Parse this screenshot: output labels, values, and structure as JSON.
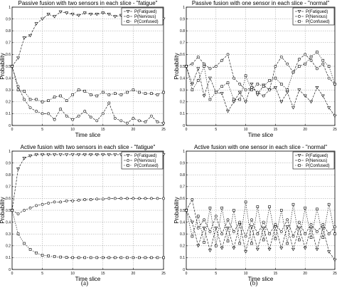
{
  "chart_data": [
    {
      "type": "line",
      "title": "Passive fusion with two sensors in each slice - \"fatigue\"",
      "xlabel": "Time slice",
      "ylabel": "Probability",
      "xlim": [
        0,
        25
      ],
      "ylim": [
        0,
        1
      ],
      "xticks": [
        0,
        5,
        10,
        15,
        20,
        25
      ],
      "yticks": [
        0,
        0.1,
        0.2,
        0.3,
        0.4,
        0.5,
        0.6,
        0.7,
        0.8,
        0.9,
        1
      ],
      "grid": true,
      "legend": "top-right",
      "x": [
        0,
        1,
        2,
        3,
        4,
        5,
        6,
        7,
        8,
        9,
        10,
        11,
        12,
        13,
        14,
        15,
        16,
        17,
        18,
        19,
        20,
        21,
        22,
        23,
        24,
        25
      ],
      "series": [
        {
          "name": "P(Fatigued)",
          "marker": "triangle",
          "values": [
            0.5,
            0.57,
            0.74,
            0.76,
            0.86,
            0.9,
            0.94,
            0.92,
            0.96,
            0.95,
            0.94,
            0.93,
            0.95,
            0.94,
            0.94,
            0.95,
            0.94,
            0.92,
            0.93,
            0.94,
            0.92,
            0.93,
            0.94,
            0.93,
            0.93,
            0.9
          ]
        },
        {
          "name": "P(Nervous)",
          "marker": "circle",
          "values": [
            0.5,
            0.33,
            0.22,
            0.15,
            0.12,
            0.1,
            0.1,
            0.05,
            0.14,
            0.08,
            0.05,
            0.08,
            0.12,
            0.07,
            0.04,
            0.1,
            0.19,
            0.06,
            0.04,
            0.02,
            0.06,
            0.04,
            0.03,
            0.08,
            0.03,
            0.02
          ]
        },
        {
          "name": "P(Confused)",
          "marker": "square",
          "values": [
            0.5,
            0.3,
            0.29,
            0.22,
            0.22,
            0.2,
            0.21,
            0.24,
            0.25,
            0.21,
            0.26,
            0.3,
            0.29,
            0.26,
            0.25,
            0.28,
            0.26,
            0.27,
            0.26,
            0.28,
            0.3,
            0.28,
            0.27,
            0.27,
            0.26,
            0.28
          ]
        }
      ]
    },
    {
      "type": "line",
      "title": "Passive fusion with one sensor in each slice - \"normal\"",
      "xlabel": "Time slice",
      "ylabel": "Probability",
      "xlim": [
        0,
        25
      ],
      "ylim": [
        0,
        1
      ],
      "xticks": [
        0,
        5,
        10,
        15,
        20,
        25
      ],
      "yticks": [
        0,
        0.1,
        0.2,
        0.3,
        0.4,
        0.5,
        0.6,
        0.7,
        0.8,
        0.9,
        1
      ],
      "grid": true,
      "legend": "top-right",
      "x": [
        0,
        1,
        2,
        3,
        4,
        5,
        6,
        7,
        8,
        9,
        10,
        11,
        12,
        13,
        14,
        15,
        16,
        17,
        18,
        19,
        20,
        21,
        22,
        23,
        24,
        25
      ],
      "series": [
        {
          "name": "P(Fatigued)",
          "marker": "triangle",
          "values": [
            0.5,
            0.35,
            0.48,
            0.25,
            0.4,
            0.28,
            0.27,
            0.12,
            0.2,
            0.28,
            0.2,
            0.35,
            0.26,
            0.34,
            0.3,
            0.32,
            0.2,
            0.28,
            0.15,
            0.3,
            0.25,
            0.2,
            0.32,
            0.25,
            0.15,
            0.08
          ]
        },
        {
          "name": "P(Nervous)",
          "marker": "circle",
          "values": [
            0.5,
            0.52,
            0.58,
            0.52,
            0.48,
            0.5,
            0.55,
            0.6,
            0.4,
            0.35,
            0.3,
            0.32,
            0.28,
            0.25,
            0.3,
            0.5,
            0.58,
            0.52,
            0.45,
            0.56,
            0.6,
            0.55,
            0.48,
            0.52,
            0.4,
            0.35
          ]
        },
        {
          "name": "P(Confused)",
          "marker": "square",
          "values": [
            0.5,
            0.3,
            0.38,
            0.5,
            0.22,
            0.28,
            0.33,
            0.36,
            0.22,
            0.22,
            0.42,
            0.3,
            0.35,
            0.33,
            0.38,
            0.4,
            0.35,
            0.3,
            0.45,
            0.5,
            0.52,
            0.58,
            0.62,
            0.55,
            0.5,
            0.35
          ]
        }
      ]
    },
    {
      "type": "line",
      "title": "Active fusion with two sensors in each slice - \"fatigue\"",
      "xlabel": "Time slice",
      "ylabel": "Probability",
      "xlim": [
        0,
        25
      ],
      "ylim": [
        0,
        1
      ],
      "xticks": [
        0,
        5,
        10,
        15,
        20,
        25
      ],
      "yticks": [
        0,
        0.1,
        0.2,
        0.3,
        0.4,
        0.5,
        0.6,
        0.7,
        0.8,
        0.9,
        1
      ],
      "grid": true,
      "legend": "top-right",
      "x": [
        0,
        1,
        2,
        3,
        4,
        5,
        6,
        7,
        8,
        9,
        10,
        11,
        12,
        13,
        14,
        15,
        16,
        17,
        18,
        19,
        20,
        21,
        22,
        23,
        24,
        25
      ],
      "series": [
        {
          "name": "P(Fatigued)",
          "marker": "triangle",
          "values": [
            0.5,
            0.85,
            0.94,
            0.96,
            0.97,
            0.97,
            0.97,
            0.97,
            0.97,
            0.97,
            0.97,
            0.97,
            0.97,
            0.97,
            0.97,
            0.97,
            0.97,
            0.97,
            0.97,
            0.97,
            0.97,
            0.97,
            0.97,
            0.97,
            0.97,
            0.97
          ]
        },
        {
          "name": "P(Nervous)",
          "marker": "circle",
          "values": [
            0.5,
            0.47,
            0.5,
            0.52,
            0.54,
            0.55,
            0.56,
            0.57,
            0.57,
            0.58,
            0.58,
            0.585,
            0.59,
            0.59,
            0.595,
            0.595,
            0.6,
            0.6,
            0.6,
            0.6,
            0.6,
            0.6,
            0.6,
            0.6,
            0.6,
            0.6
          ]
        },
        {
          "name": "P(Confused)",
          "marker": "square",
          "values": [
            0.5,
            0.3,
            0.22,
            0.17,
            0.14,
            0.12,
            0.115,
            0.11,
            0.105,
            0.102,
            0.1,
            0.1,
            0.1,
            0.1,
            0.1,
            0.1,
            0.1,
            0.1,
            0.1,
            0.1,
            0.1,
            0.1,
            0.1,
            0.1,
            0.1,
            0.1
          ]
        }
      ]
    },
    {
      "type": "line",
      "title": "Active fusion with one sensor in each slice - \"normal\"",
      "xlabel": "Time slice",
      "ylabel": "Probability",
      "xlim": [
        0,
        25
      ],
      "ylim": [
        0,
        1
      ],
      "xticks": [
        0,
        5,
        10,
        15,
        20,
        25
      ],
      "yticks": [
        0,
        0.1,
        0.2,
        0.3,
        0.4,
        0.5,
        0.6,
        0.7,
        0.8,
        0.9,
        1
      ],
      "grid": true,
      "legend": "top-right",
      "x": [
        0,
        1,
        2,
        3,
        4,
        5,
        6,
        7,
        8,
        9,
        10,
        11,
        12,
        13,
        14,
        15,
        16,
        17,
        18,
        19,
        20,
        21,
        22,
        23,
        24,
        25
      ],
      "series": [
        {
          "name": "P(Fatigued)",
          "marker": "triangle",
          "values": [
            0.5,
            0.4,
            0.2,
            0.35,
            0.16,
            0.35,
            0.18,
            0.35,
            0.18,
            0.38,
            0.15,
            0.36,
            0.17,
            0.35,
            0.17,
            0.36,
            0.18,
            0.36,
            0.17,
            0.35,
            0.18,
            0.35,
            0.17,
            0.35,
            0.15,
            0.08
          ]
        },
        {
          "name": "P(Nervous)",
          "marker": "circle",
          "values": [
            0.5,
            0.59,
            0.35,
            0.42,
            0.32,
            0.45,
            0.3,
            0.42,
            0.32,
            0.4,
            0.28,
            0.42,
            0.3,
            0.4,
            0.3,
            0.38,
            0.32,
            0.42,
            0.28,
            0.4,
            0.3,
            0.38,
            0.32,
            0.38,
            0.3,
            0.36
          ]
        },
        {
          "name": "P(Confused)",
          "marker": "square",
          "values": [
            0.5,
            0.28,
            0.45,
            0.23,
            0.52,
            0.2,
            0.52,
            0.24,
            0.5,
            0.22,
            0.57,
            0.22,
            0.53,
            0.25,
            0.53,
            0.26,
            0.5,
            0.22,
            0.55,
            0.25,
            0.52,
            0.27,
            0.51,
            0.27,
            0.55,
            0.3
          ]
        }
      ]
    }
  ],
  "captions": [
    "(a)",
    "(b)"
  ]
}
